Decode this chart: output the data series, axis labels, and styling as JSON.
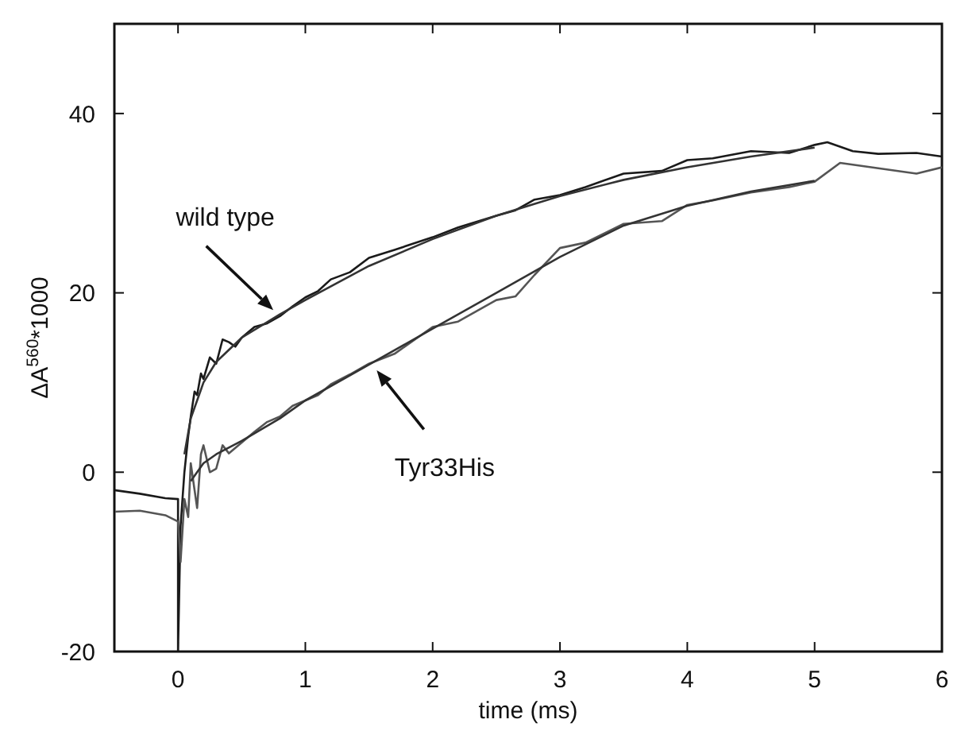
{
  "chart_data": {
    "type": "line",
    "xlabel": "time (ms)",
    "ylabel": "ΔA$^{560}$*1000",
    "xlim": [
      -0.5,
      6
    ],
    "ylim": [
      -20,
      50
    ],
    "xticks": [
      0,
      1,
      2,
      3,
      4,
      5,
      6
    ],
    "yticks": [
      -20,
      0,
      20,
      40
    ],
    "grid": false,
    "legend": false,
    "marker": "none",
    "line_style": "solid",
    "series": [
      {
        "color": "#1a1a1a",
        "x": [
          -0.5,
          -0.3,
          -0.1,
          0,
          0,
          0.02,
          0.05,
          0.08,
          0.1,
          0.13,
          0.15,
          0.18,
          0.2,
          0.25,
          0.3,
          0.35,
          0.4,
          0.45,
          0.5,
          0.6,
          0.7,
          0.8,
          0.9,
          1,
          1.1,
          1.2,
          1.35,
          1.5,
          1.7,
          2,
          2.2,
          2.5,
          2.65,
          2.8,
          3,
          3.2,
          3.5,
          3.8,
          4,
          4.2,
          4.5,
          4.8,
          5,
          5.1,
          5.3,
          5.5,
          5.8,
          6
        ],
        "values": [
          -2,
          -2.4,
          -2.9,
          -3,
          -20,
          -6,
          0,
          4,
          6.2,
          9,
          8.6,
          11,
          10.4,
          12.8,
          12.1,
          14.8,
          14.5,
          14,
          15,
          16.2,
          16.6,
          17.4,
          18.5,
          19.5,
          20.2,
          21.5,
          22.3,
          23.9,
          24.8,
          26.2,
          27.3,
          28.6,
          29.2,
          30.4,
          30.9,
          31.8,
          33.3,
          33.6,
          34.8,
          35,
          35.8,
          35.6,
          36.5,
          36.8,
          35.8,
          35.5,
          35.6,
          35.2
        ]
      },
      {
        "color": "#555555",
        "x": [
          -0.5,
          -0.3,
          -0.1,
          0,
          0.02,
          0.05,
          0.08,
          0.1,
          0.13,
          0.15,
          0.18,
          0.2,
          0.25,
          0.3,
          0.35,
          0.4,
          0.5,
          0.6,
          0.7,
          0.8,
          0.9,
          1,
          1.1,
          1.2,
          1.35,
          1.5,
          1.7,
          2,
          2.2,
          2.5,
          2.65,
          2.8,
          3,
          3.2,
          3.5,
          3.8,
          4,
          4.2,
          4.5,
          4.8,
          5,
          5.2,
          5.5,
          5.8,
          6
        ],
        "values": [
          -4.4,
          -4.3,
          -4.8,
          -5.5,
          -10,
          -3,
          -5,
          1,
          -2,
          -4,
          2,
          3,
          0,
          0.4,
          3,
          2.1,
          3.3,
          4.5,
          5.6,
          6.2,
          7.4,
          8,
          8.6,
          9.8,
          10.9,
          12.1,
          13.2,
          16.2,
          16.8,
          19.2,
          19.6,
          22,
          25,
          25.6,
          27.7,
          28,
          29.8,
          30.3,
          31.2,
          31.8,
          32.4,
          34.5,
          33.9,
          33.3,
          34
        ]
      },
      {
        "color": "#333333",
        "x": [
          0.05,
          0.1,
          0.2,
          0.3,
          0.5,
          0.8,
          1,
          1.5,
          2,
          2.5,
          3,
          3.5,
          4,
          4.5,
          5
        ],
        "values": [
          2,
          6,
          10,
          12.3,
          15,
          17.6,
          19.2,
          23,
          26,
          28.6,
          30.8,
          32.6,
          34,
          35.2,
          36.2
        ]
      },
      {
        "color": "#333333",
        "x": [
          0.1,
          0.2,
          0.3,
          0.5,
          0.8,
          1,
          1.5,
          2,
          2.5,
          3,
          3.5,
          4,
          4.5,
          5
        ],
        "values": [
          -1,
          1,
          2,
          3.5,
          6,
          8,
          12,
          16,
          20,
          24,
          27.5,
          29.7,
          31.3,
          32.5
        ]
      }
    ],
    "annotations": [
      "wild type",
      "Tyr33His"
    ]
  }
}
